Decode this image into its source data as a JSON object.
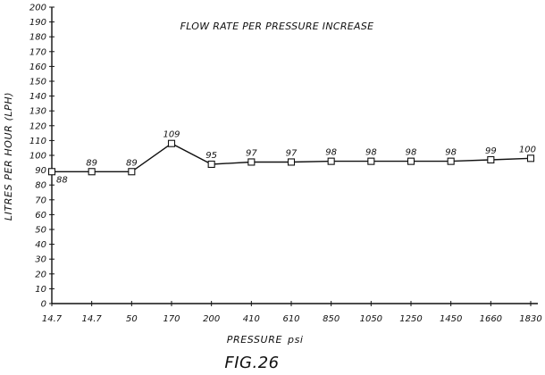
{
  "chart_data": {
    "type": "line",
    "title": "FLOW RATE PER PRESSURE INCREASE",
    "xlabel": "PRESSURE",
    "xunit": "psi",
    "ylabel": "LITRES PER HOUR (LPH)",
    "ylim": [
      0,
      200
    ],
    "ystep": 10,
    "grid": false,
    "categories": [
      "14.7",
      "14.7",
      "50",
      "170",
      "200",
      "410",
      "610",
      "850",
      "1050",
      "1250",
      "1450",
      "1660",
      "1830"
    ],
    "values": [
      88,
      89,
      89,
      109,
      95,
      97,
      97,
      98,
      98,
      98,
      98,
      99,
      100
    ],
    "plotted_y": [
      89,
      89,
      89,
      108,
      94,
      95.5,
      95.5,
      96,
      96,
      96,
      96,
      97,
      98
    ]
  },
  "figure": {
    "caption": "FIG.26"
  }
}
